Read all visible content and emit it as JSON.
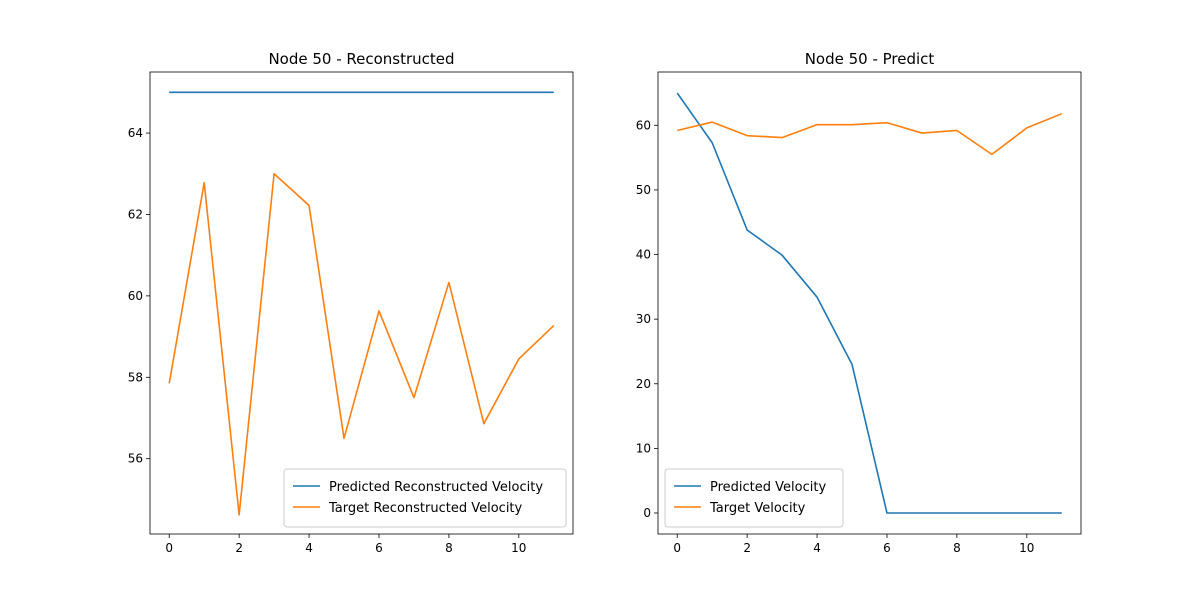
{
  "chart_data": [
    {
      "type": "line",
      "title": "Node 50 - Reconstructed",
      "xlabel": "",
      "ylabel": "",
      "xlim": [
        -0.55,
        11.55
      ],
      "ylim": [
        54.15,
        65.5
      ],
      "xticks": [
        0,
        2,
        4,
        6,
        8,
        10
      ],
      "yticks": [
        56,
        58,
        60,
        62,
        64
      ],
      "legend_placement": "lower-right",
      "x": [
        0,
        1,
        2,
        3,
        4,
        5,
        6,
        7,
        8,
        9,
        10,
        11
      ],
      "series": [
        {
          "name": "Predicted Reconstructed Velocity",
          "color": "#1f77b4",
          "values": [
            65.0,
            65.0,
            65.0,
            65.0,
            65.0,
            65.0,
            65.0,
            65.0,
            65.0,
            65.0,
            65.0,
            65.0
          ]
        },
        {
          "name": "Target Reconstructed Velocity",
          "color": "#ff7f0e",
          "values": [
            57.85,
            62.78,
            54.62,
            63.0,
            62.22,
            56.5,
            59.63,
            57.5,
            60.33,
            56.86,
            58.45,
            59.27
          ]
        }
      ]
    },
    {
      "type": "line",
      "title": "Node 50 - Predict",
      "xlabel": "",
      "ylabel": "",
      "xlim": [
        -0.55,
        11.55
      ],
      "ylim": [
        -3.25,
        68.25
      ],
      "xticks": [
        0,
        2,
        4,
        6,
        8,
        10
      ],
      "yticks": [
        0,
        10,
        20,
        30,
        40,
        50,
        60
      ],
      "legend_placement": "lower-left",
      "x": [
        0,
        1,
        2,
        3,
        4,
        5,
        6,
        7,
        8,
        9,
        10,
        11
      ],
      "series": [
        {
          "name": "Predicted Velocity",
          "color": "#1f77b4",
          "values": [
            65.0,
            57.3,
            43.8,
            39.9,
            33.4,
            23.0,
            0.0,
            0.0,
            0.0,
            0.0,
            0.0,
            0.0
          ]
        },
        {
          "name": "Target Velocity",
          "color": "#ff7f0e",
          "values": [
            59.2,
            60.5,
            58.4,
            58.1,
            60.1,
            60.1,
            60.4,
            58.8,
            59.2,
            55.5,
            59.6,
            61.8
          ]
        }
      ]
    }
  ]
}
